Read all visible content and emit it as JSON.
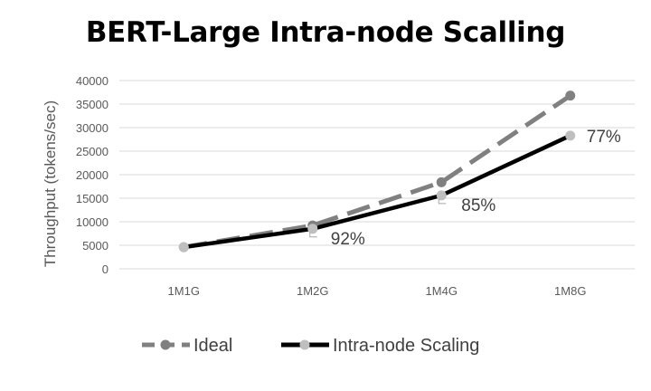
{
  "chart_data": {
    "type": "line",
    "title": "BERT-Large Intra-node Scalling",
    "xlabel": "",
    "ylabel": "Throughput (tokens/sec)",
    "ylim": [
      0,
      40000
    ],
    "yticks": [
      0,
      5000,
      10000,
      15000,
      20000,
      25000,
      30000,
      35000,
      40000
    ],
    "grid": true,
    "legend_position": "bottom",
    "categories": [
      "1M1G",
      "1M2G",
      "1M4G",
      "1M8G"
    ],
    "series": [
      {
        "name": "Ideal",
        "values": [
          4600,
          9200,
          18400,
          36800
        ],
        "color": "#808080",
        "dashed": true,
        "marker_color": "#808080"
      },
      {
        "name": "Intra-node Scaling",
        "values": [
          4600,
          8500,
          15600,
          28300
        ],
        "color": "#000000",
        "dashed": false,
        "marker_color": "#bfbfbf",
        "data_labels": [
          "",
          "92%",
          "85%",
          "77%"
        ]
      }
    ]
  }
}
